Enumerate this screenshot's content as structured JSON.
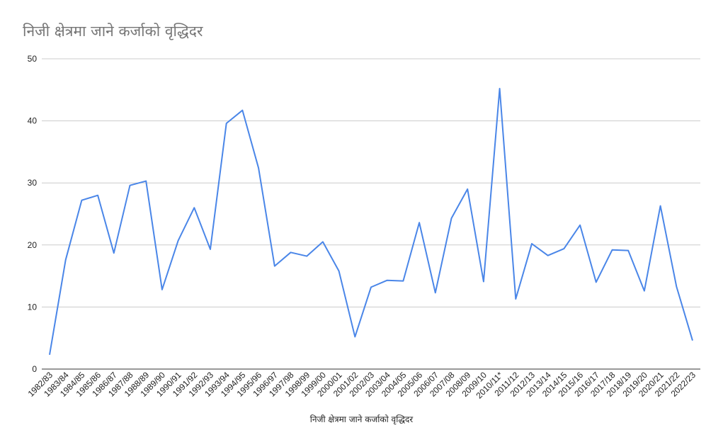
{
  "chart_data": {
    "type": "line",
    "title": "निजी क्षेत्रमा जाने कर्जाको वृद्धिदर",
    "xlabel": "निजी क्षेत्रमा जाने कर्जाको वृद्धिदर",
    "ylabel": "",
    "ylim": [
      0,
      50
    ],
    "yticks": [
      "0",
      "10",
      "20",
      "30",
      "40",
      "50"
    ],
    "grid": true,
    "legend": "none",
    "color": "#4a86e8",
    "categories": [
      "1982/83",
      "1983/84",
      "1984/85",
      "1985/86",
      "1986/87",
      "1987/88",
      "1988/89",
      "1989/90",
      "1990/91",
      "1991/92",
      "1992/93",
      "1993/94",
      "1994/95",
      "1995/96",
      "1996/97",
      "1997/98",
      "1998/99",
      "1999/00",
      "2000/01",
      "2001/02",
      "2002/03",
      "2003/04",
      "2004/05",
      "2005/06",
      "2006/07",
      "2007/08",
      "2008/09",
      "2009/10",
      "2010/11*",
      "2011/12",
      "2012/13",
      "2013/14",
      "2014/15",
      "2015/16",
      "2016/17",
      "2017/18",
      "2018/19",
      "2019/20",
      "2020/21",
      "2021/22",
      "2022/23"
    ],
    "series": [
      {
        "values": [
          2.3,
          17.6,
          27.2,
          28.0,
          18.7,
          29.6,
          30.3,
          12.8,
          20.7,
          26.0,
          19.3,
          39.6,
          41.7,
          32.4,
          16.6,
          18.8,
          18.2,
          20.5,
          15.8,
          5.2,
          13.2,
          14.3,
          14.2,
          23.6,
          12.3,
          24.3,
          29.0,
          14.1,
          45.2,
          11.3,
          20.2,
          18.3,
          19.4,
          23.2,
          14.0,
          19.2,
          19.1,
          12.6,
          26.3,
          13.3,
          4.6
        ]
      }
    ]
  }
}
